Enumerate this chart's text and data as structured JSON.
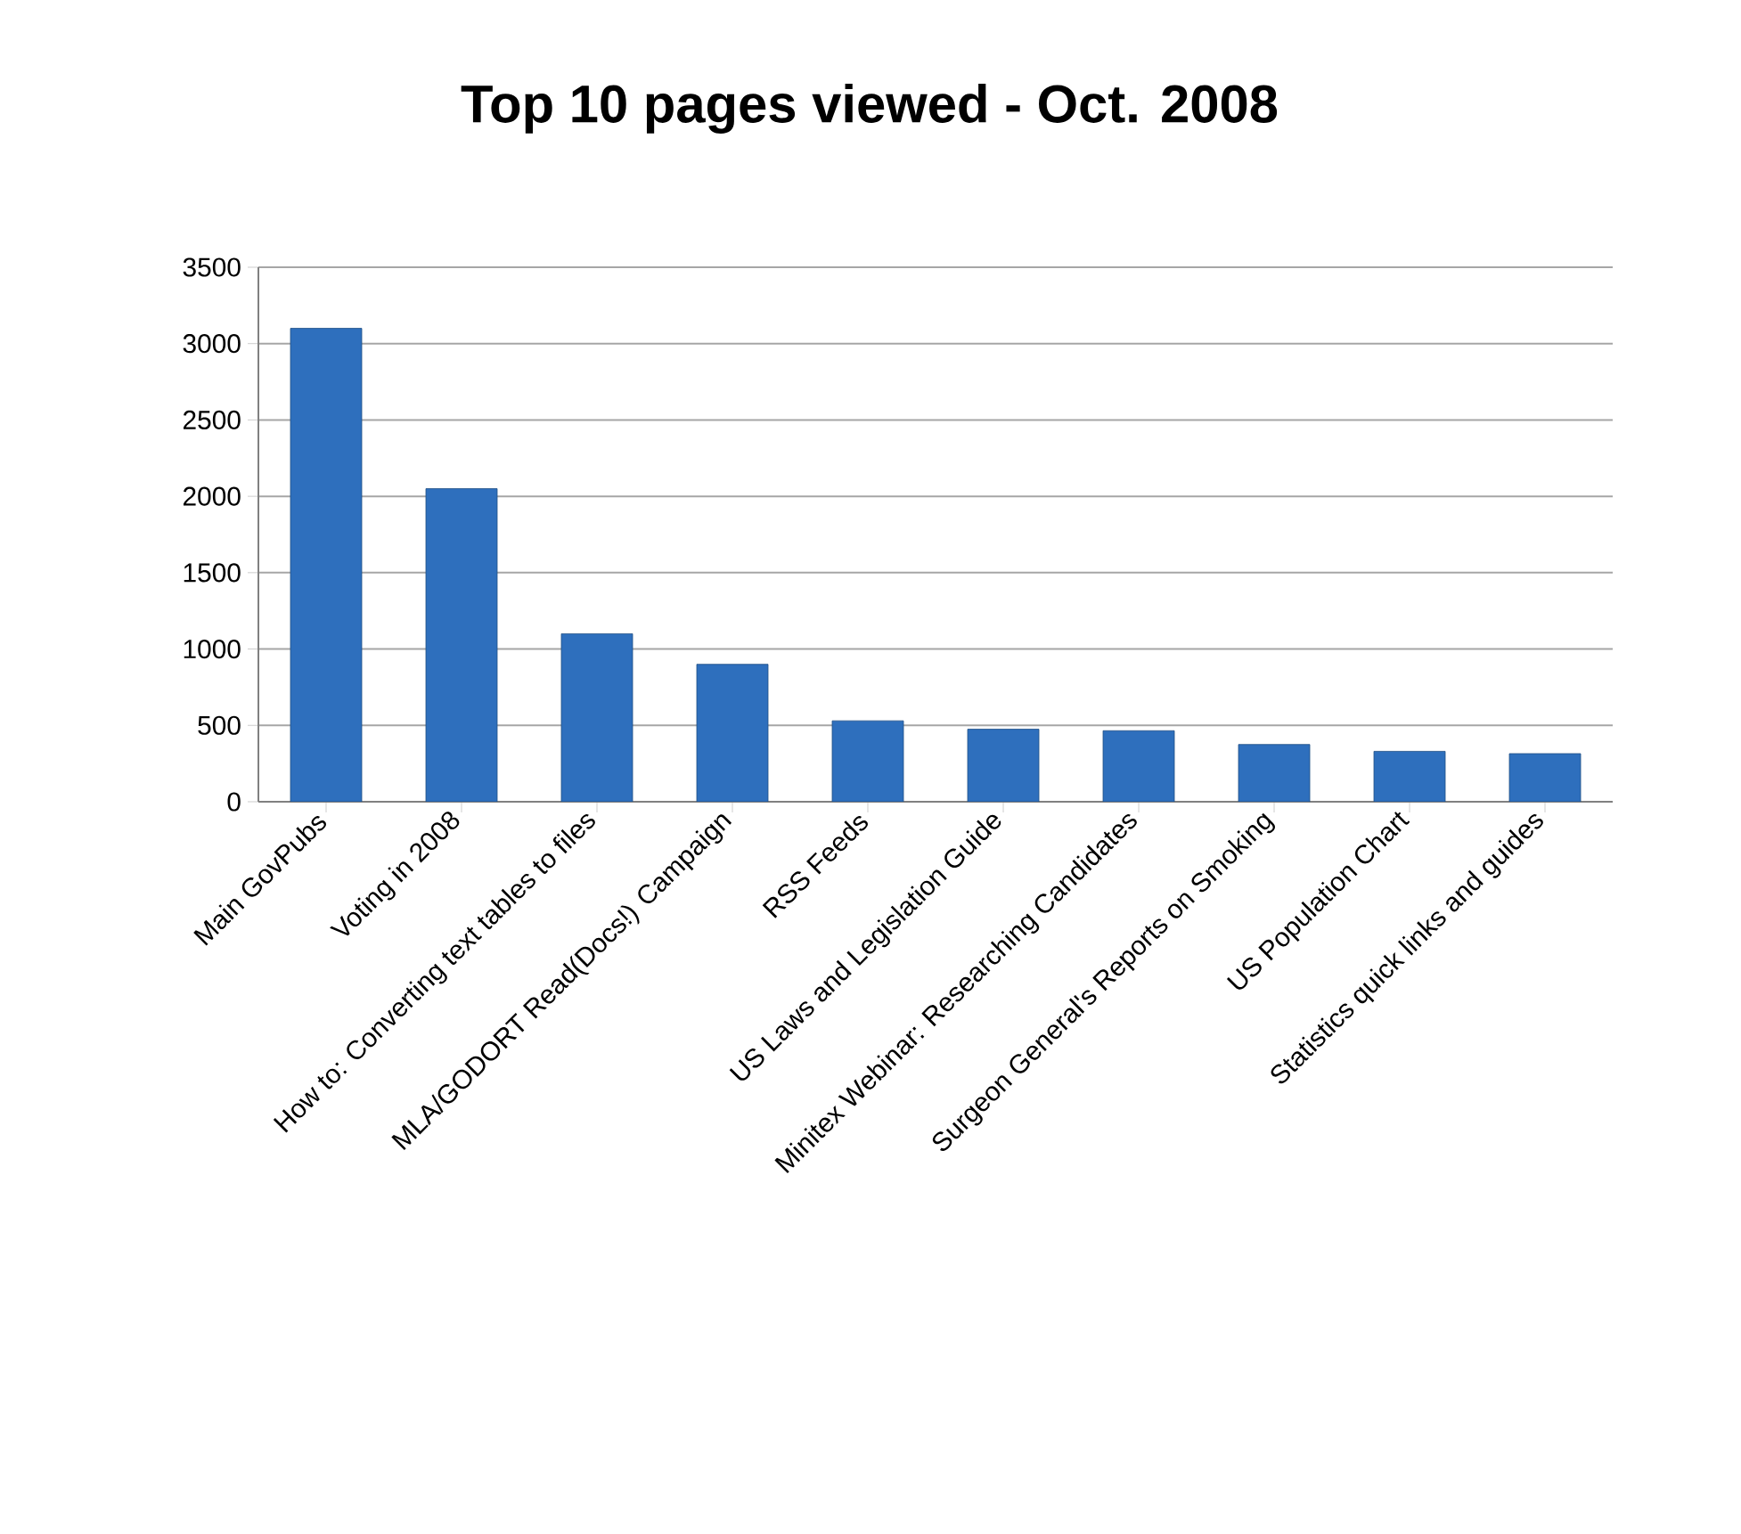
{
  "chart_data": {
    "type": "bar",
    "title": "Top 10 pages viewed - Oct. 2008",
    "categories": [
      "Main GovPubs",
      "Voting in 2008",
      "How to: Converting text tables to files",
      "MLA/GODORT Read(Docs!) Campaign",
      "RSS Feeds",
      "US Laws and Legislation Guide",
      "Minitex Webinar: Researching Candidates",
      "Surgeon General's Reports on Smoking",
      "US Population Chart",
      "Statistics quick links and guides"
    ],
    "values": [
      3100,
      2050,
      1100,
      900,
      530,
      475,
      465,
      375,
      330,
      315
    ],
    "color": "#2e6fbd",
    "ylim": [
      0,
      3500
    ],
    "yticks": [
      0,
      500,
      1000,
      1500,
      2000,
      2500,
      3000,
      3500
    ],
    "grid": "y"
  }
}
